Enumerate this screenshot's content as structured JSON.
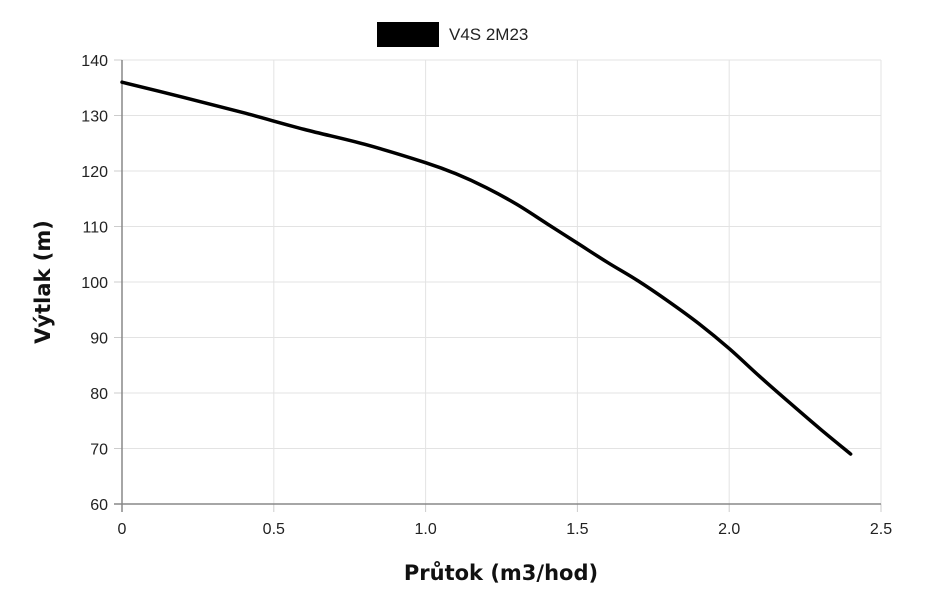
{
  "chart_data": {
    "type": "line",
    "legend": {
      "position": "top-center",
      "entries": [
        "V4S 2M23"
      ]
    },
    "xlabel": "Průtok (m3/hod)",
    "ylabel": "Výtlak (m)",
    "xlim": [
      0,
      2.5
    ],
    "ylim": [
      60,
      140
    ],
    "x_ticks": [
      "0",
      "0.5",
      "1.0",
      "1.5",
      "2.0",
      "2.5"
    ],
    "y_ticks": [
      "60",
      "70",
      "80",
      "90",
      "100",
      "110",
      "120",
      "130",
      "140"
    ],
    "grid": true,
    "series": [
      {
        "name": "V4S 2M23",
        "color": "#000000",
        "x": [
          0,
          0.2,
          0.4,
          0.6,
          0.8,
          1.0,
          1.1,
          1.2,
          1.3,
          1.4,
          1.5,
          1.6,
          1.7,
          1.8,
          1.9,
          2.0,
          2.1,
          2.2,
          2.3,
          2.4
        ],
        "y": [
          136,
          133.3,
          130.5,
          127.5,
          124.8,
          121.5,
          119.5,
          117,
          114,
          110.5,
          107,
          103.5,
          100.2,
          96.5,
          92.5,
          88,
          83,
          78.2,
          73.5,
          69
        ]
      }
    ]
  }
}
